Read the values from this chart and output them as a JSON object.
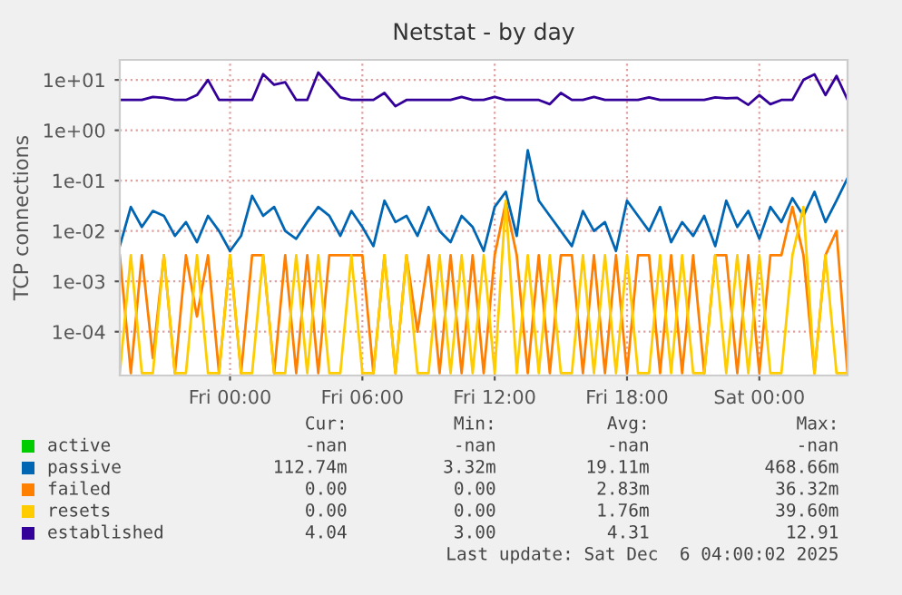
{
  "chart_data": {
    "type": "line",
    "title": "Netstat - by day",
    "ylabel": "TCP connections",
    "log": "y",
    "grid": true,
    "legend": "bottom",
    "marker": "none",
    "line_style": "solid",
    "x": [
      "2025-12-04T19:00",
      "2025-12-04T19:30",
      "2025-12-04T20:00",
      "2025-12-04T20:30",
      "2025-12-04T21:00",
      "2025-12-04T21:30",
      "2025-12-04T22:00",
      "2025-12-04T22:30",
      "2025-12-04T23:00",
      "2025-12-04T23:30",
      "2025-12-05T00:00",
      "2025-12-05T00:30",
      "2025-12-05T01:00",
      "2025-12-05T01:30",
      "2025-12-05T02:00",
      "2025-12-05T02:30",
      "2025-12-05T03:00",
      "2025-12-05T03:30",
      "2025-12-05T04:00",
      "2025-12-05T04:30",
      "2025-12-05T05:00",
      "2025-12-05T05:30",
      "2025-12-05T06:00",
      "2025-12-05T06:30",
      "2025-12-05T07:00",
      "2025-12-05T07:30",
      "2025-12-05T08:00",
      "2025-12-05T08:30",
      "2025-12-05T09:00",
      "2025-12-05T09:30",
      "2025-12-05T10:00",
      "2025-12-05T10:30",
      "2025-12-05T11:00",
      "2025-12-05T11:30",
      "2025-12-05T12:00",
      "2025-12-05T12:30",
      "2025-12-05T13:00",
      "2025-12-05T13:30",
      "2025-12-05T14:00",
      "2025-12-05T14:30",
      "2025-12-05T15:00",
      "2025-12-05T15:30",
      "2025-12-05T16:00",
      "2025-12-05T16:30",
      "2025-12-05T17:00",
      "2025-12-05T17:30",
      "2025-12-05T18:00",
      "2025-12-05T18:30",
      "2025-12-05T19:00",
      "2025-12-05T19:30",
      "2025-12-05T20:00",
      "2025-12-05T20:30",
      "2025-12-05T21:00",
      "2025-12-05T21:30",
      "2025-12-05T22:00",
      "2025-12-05T22:30",
      "2025-12-05T23:00",
      "2025-12-05T23:30",
      "2025-12-06T00:00",
      "2025-12-06T00:30",
      "2025-12-06T01:00",
      "2025-12-06T01:30",
      "2025-12-06T02:00",
      "2025-12-06T02:30",
      "2025-12-06T03:00",
      "2025-12-06T03:30",
      "2025-12-06T04:00"
    ],
    "xlim": [
      "2025-12-04T19:00",
      "2025-12-06T04:00"
    ],
    "xticks": [
      {
        "value": "2025-12-05T00:00",
        "label": "Fri 00:00"
      },
      {
        "value": "2025-12-05T06:00",
        "label": "Fri 06:00"
      },
      {
        "value": "2025-12-05T12:00",
        "label": "Fri 12:00"
      },
      {
        "value": "2025-12-05T18:00",
        "label": "Fri 18:00"
      },
      {
        "value": "2025-12-06T00:00",
        "label": "Sat 00:00"
      }
    ],
    "ylim": [
      1.35e-05,
      25
    ],
    "yticks": [
      {
        "value": 0.0001,
        "label": "1e-04"
      },
      {
        "value": 0.001,
        "label": "1e-03"
      },
      {
        "value": 0.01,
        "label": "1e-02"
      },
      {
        "value": 0.1,
        "label": "1e-01"
      },
      {
        "value": 1,
        "label": "1e+00"
      },
      {
        "value": 10,
        "label": "1e+01"
      }
    ],
    "series": [
      {
        "name": "active",
        "color": "#00cc00",
        "values": [
          null,
          null,
          null,
          null,
          null,
          null,
          null,
          null,
          null,
          null,
          null,
          null,
          null,
          null,
          null,
          null,
          null,
          null,
          null,
          null,
          null,
          null,
          null,
          null,
          null,
          null,
          null,
          null,
          null,
          null,
          null,
          null,
          null,
          null,
          null,
          null,
          null,
          null,
          null,
          null,
          null,
          null,
          null,
          null,
          null,
          null,
          null,
          null,
          null,
          null,
          null,
          null,
          null,
          null,
          null,
          null,
          null,
          null,
          null,
          null,
          null,
          null,
          null,
          null,
          null,
          null,
          null
        ]
      },
      {
        "name": "passive",
        "color": "#0066b3",
        "values": [
          0.005,
          0.03,
          0.012,
          0.025,
          0.02,
          0.008,
          0.015,
          0.006,
          0.02,
          0.01,
          0.004,
          0.008,
          0.05,
          0.02,
          0.03,
          0.01,
          0.007,
          0.015,
          0.03,
          0.02,
          0.008,
          0.025,
          0.012,
          0.005,
          0.04,
          0.015,
          0.02,
          0.008,
          0.03,
          0.01,
          0.006,
          0.02,
          0.012,
          0.004,
          0.03,
          0.06,
          0.008,
          0.4,
          0.04,
          0.02,
          0.01,
          0.005,
          0.025,
          0.01,
          0.015,
          0.004,
          0.04,
          0.02,
          0.01,
          0.03,
          0.006,
          0.015,
          0.008,
          0.02,
          0.005,
          0.04,
          0.012,
          0.025,
          0.007,
          0.03,
          0.015,
          0.045,
          0.02,
          0.06,
          0.015,
          0.04,
          0.11274
        ]
      },
      {
        "name": "failed",
        "color": "#ff8000",
        "values": [
          0.0033,
          1.5e-05,
          0.0033,
          3e-05,
          0.0033,
          1.5e-05,
          0.0033,
          0.0002,
          0.0033,
          1.5e-05,
          0.0033,
          1.5e-05,
          0.0033,
          0.0033,
          1.5e-05,
          0.0033,
          1.5e-05,
          0.0033,
          1.5e-05,
          0.0033,
          0.0033,
          0.0033,
          0.0033,
          1.5e-05,
          0.0033,
          1.5e-05,
          0.0033,
          0.0001,
          0.0033,
          1.5e-05,
          0.0033,
          1.5e-05,
          0.0033,
          1.5e-05,
          0.0033,
          0.03632,
          0.0033,
          1.5e-05,
          0.0033,
          1.5e-05,
          0.0033,
          0.0033,
          1.5e-05,
          0.0033,
          1.5e-05,
          0.0033,
          1.5e-05,
          0.0033,
          0.0033,
          1.5e-05,
          0.0033,
          1.5e-05,
          0.0033,
          1.5e-05,
          0.0033,
          0.0033,
          1.5e-05,
          0.0033,
          1.5e-05,
          0.0033,
          0.0033,
          0.03,
          0.0033,
          1.5e-05,
          0.0033,
          0.01,
          1.5e-05
        ]
      },
      {
        "name": "resets",
        "color": "#ffcc00",
        "values": [
          1.5e-05,
          0.0033,
          1.5e-05,
          1.5e-05,
          0.0033,
          1.5e-05,
          1.5e-05,
          0.0033,
          1.5e-05,
          1.5e-05,
          0.0033,
          1.5e-05,
          1.5e-05,
          0.0033,
          1.5e-05,
          1.5e-05,
          0.0033,
          1.5e-05,
          0.0033,
          1.5e-05,
          1.5e-05,
          0.0033,
          1.5e-05,
          1.5e-05,
          0.0033,
          1.5e-05,
          0.0033,
          1.5e-05,
          1.5e-05,
          0.0033,
          1.5e-05,
          0.0033,
          1.5e-05,
          0.0033,
          1.5e-05,
          0.0396,
          1.5e-05,
          0.0033,
          1.5e-05,
          0.0033,
          1.5e-05,
          1.5e-05,
          0.0033,
          1.5e-05,
          0.0033,
          1.5e-05,
          0.0033,
          1.5e-05,
          1.5e-05,
          0.0033,
          1.5e-05,
          0.0033,
          1.5e-05,
          1.5e-05,
          0.0033,
          1.5e-05,
          0.0033,
          1.5e-05,
          0.0033,
          1.5e-05,
          1.5e-05,
          0.0033,
          0.03,
          1.5e-05,
          0.0033,
          1.5e-05,
          1.5e-05
        ]
      },
      {
        "name": "established",
        "color": "#330099",
        "values": [
          4,
          4,
          4,
          4.6,
          4.4,
          4,
          4,
          5,
          10,
          4,
          4,
          4,
          4,
          13,
          8,
          9,
          4,
          4,
          14,
          8,
          4.5,
          4,
          4,
          4,
          5.5,
          3,
          4,
          4,
          4,
          4,
          4,
          4.6,
          4,
          4,
          4.6,
          4,
          4,
          4,
          4,
          3.3,
          5.5,
          4,
          4,
          4.6,
          4,
          4,
          4,
          4,
          4.5,
          4,
          4,
          4,
          4,
          4,
          4.5,
          4.3,
          4.4,
          3.2,
          5,
          3.3,
          4,
          4,
          10,
          12.91,
          5,
          12,
          4.04
        ]
      }
    ],
    "annotations": [
      "Cur: Min: Avg: Max:",
      "-nan -nan -nan -nan",
      "112.74m 3.32m 19.11m 468.66m",
      "0.00 0.00 2.83m 36.32m",
      "0.00 0.00 1.76m 39.60m",
      "4.04 3.00 4.31 12.91",
      "Last update: Sat Dec  6 04:00:02 2025"
    ]
  }
}
